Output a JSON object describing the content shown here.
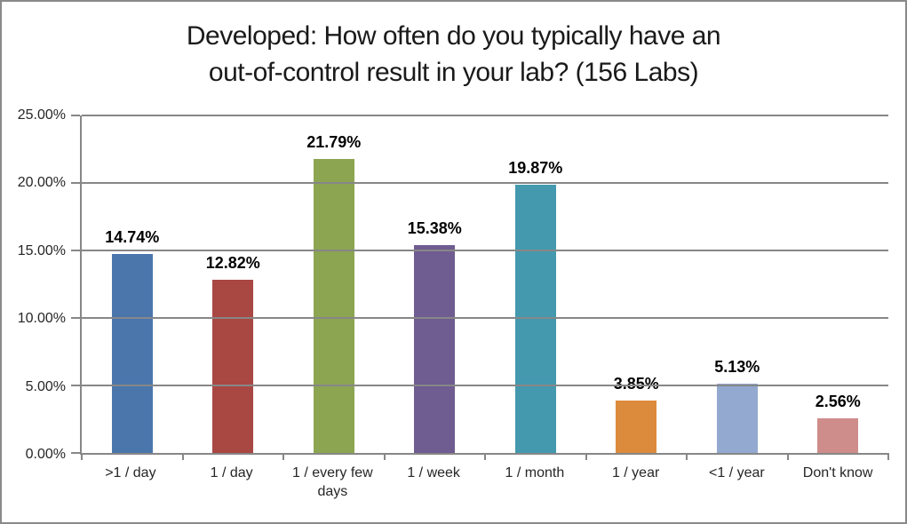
{
  "title_lines": [
    "Developed: How often do you typically have an",
    "out-of-control result in your lab? (156 Labs)"
  ],
  "chart_data": {
    "type": "bar",
    "title": "Developed: How often do you typically have an out-of-control result in your lab? (156 Labs)",
    "categories": [
      ">1 / day",
      "1 / day",
      "1 / every few days",
      "1 / week",
      "1 / month",
      "1 / year",
      "<1 / year",
      "Don't know"
    ],
    "values": [
      14.74,
      12.82,
      21.79,
      15.38,
      19.87,
      3.85,
      5.13,
      2.56
    ],
    "data_labels": [
      "14.74%",
      "12.82%",
      "21.79%",
      "15.38%",
      "19.87%",
      "3.85%",
      "5.13%",
      "2.56%"
    ],
    "bar_colors": [
      "#4a76ac",
      "#a94743",
      "#8ca551",
      "#6f5c90",
      "#4499ae",
      "#dc8b3d",
      "#93a9cf",
      "#ce8d8b"
    ],
    "xlabel": "",
    "ylabel": "",
    "ylim": [
      0,
      25
    ],
    "ytick_labels": [
      "0.00%",
      "5.00%",
      "10.00%",
      "15.00%",
      "20.00%",
      "25.00%"
    ],
    "grid": true,
    "legend": false
  },
  "colors": {
    "background": "#ffffff",
    "border": "#8a8a8a",
    "gridline": "#878787",
    "title_text": "#1a1a1a",
    "axis_text": "#262626",
    "data_label_text": "#000000"
  }
}
